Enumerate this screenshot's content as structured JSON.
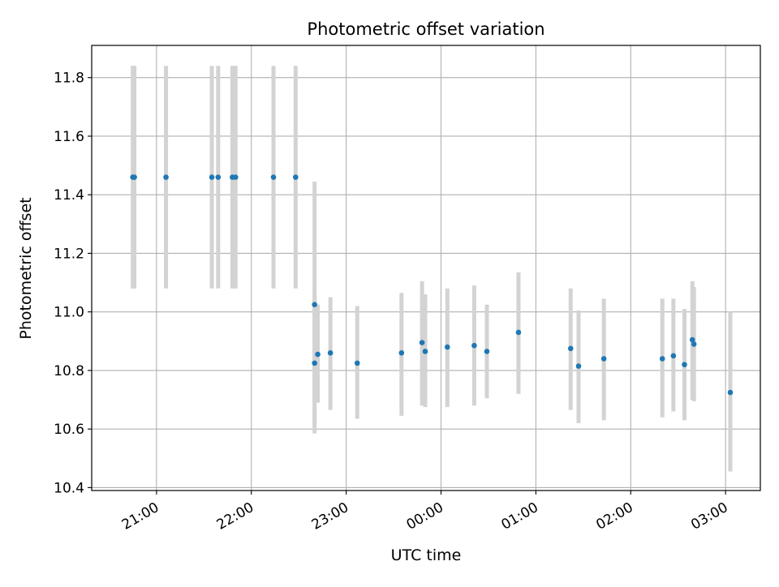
{
  "chart_data": {
    "type": "scatter",
    "title": "Photometric offset variation",
    "xlabel": "UTC time",
    "ylabel": "Photometric offset",
    "x_unit": "UTC clock time (hours after 00:00 of second day shown negative before midnight)",
    "xlim": [
      "20:19",
      "03:22"
    ],
    "ylim": [
      10.39,
      11.91
    ],
    "x_ticks": [
      "21:00",
      "22:00",
      "23:00",
      "00:00",
      "01:00",
      "02:00",
      "03:00"
    ],
    "y_ticks": [
      "10.4",
      "10.6",
      "10.8",
      "11.0",
      "11.2",
      "11.4",
      "11.6",
      "11.8"
    ],
    "grid": true,
    "marker_color": "#1f77b4",
    "errorbar_color": "#d3d3d3",
    "points": [
      {
        "x": "20:45",
        "y": 11.46,
        "err_low": 11.08,
        "err_high": 11.84
      },
      {
        "x": "20:46",
        "y": 11.46,
        "err_low": 11.08,
        "err_high": 11.84
      },
      {
        "x": "21:06",
        "y": 11.46,
        "err_low": 11.08,
        "err_high": 11.84
      },
      {
        "x": "21:35",
        "y": 11.46,
        "err_low": 11.08,
        "err_high": 11.84
      },
      {
        "x": "21:39",
        "y": 11.46,
        "err_low": 11.08,
        "err_high": 11.84
      },
      {
        "x": "21:48",
        "y": 11.46,
        "err_low": 11.08,
        "err_high": 11.84
      },
      {
        "x": "21:50",
        "y": 11.46,
        "err_low": 11.08,
        "err_high": 11.84
      },
      {
        "x": "22:14",
        "y": 11.46,
        "err_low": 11.08,
        "err_high": 11.84
      },
      {
        "x": "22:28",
        "y": 11.46,
        "err_low": 11.08,
        "err_high": 11.84
      },
      {
        "x": "22:40",
        "y": 10.825,
        "err_low": 10.585,
        "err_high": 11.445
      },
      {
        "x": "22:40",
        "y": 11.025,
        "err_low": 10.615,
        "err_high": 11.06
      },
      {
        "x": "22:42",
        "y": 10.855,
        "err_low": 10.69,
        "err_high": 11.025
      },
      {
        "x": "22:50",
        "y": 10.86,
        "err_low": 10.665,
        "err_high": 11.05
      },
      {
        "x": "23:07",
        "y": 10.825,
        "err_low": 10.635,
        "err_high": 11.02
      },
      {
        "x": "23:35",
        "y": 10.86,
        "err_low": 10.645,
        "err_high": 11.065
      },
      {
        "x": "23:48",
        "y": 10.895,
        "err_low": 10.68,
        "err_high": 11.105
      },
      {
        "x": "23:50",
        "y": 10.865,
        "err_low": 10.675,
        "err_high": 11.06
      },
      {
        "x": "00:04",
        "y": 10.88,
        "err_low": 10.675,
        "err_high": 11.08
      },
      {
        "x": "00:21",
        "y": 10.885,
        "err_low": 10.68,
        "err_high": 11.09
      },
      {
        "x": "00:29",
        "y": 10.865,
        "err_low": 10.705,
        "err_high": 11.025
      },
      {
        "x": "00:49",
        "y": 10.93,
        "err_low": 10.72,
        "err_high": 11.135
      },
      {
        "x": "01:22",
        "y": 10.875,
        "err_low": 10.665,
        "err_high": 11.08
      },
      {
        "x": "01:27",
        "y": 10.815,
        "err_low": 10.62,
        "err_high": 11.005
      },
      {
        "x": "01:43",
        "y": 10.84,
        "err_low": 10.63,
        "err_high": 11.045
      },
      {
        "x": "02:20",
        "y": 10.84,
        "err_low": 10.64,
        "err_high": 11.045
      },
      {
        "x": "02:27",
        "y": 10.85,
        "err_low": 10.66,
        "err_high": 11.045
      },
      {
        "x": "02:34",
        "y": 10.82,
        "err_low": 10.63,
        "err_high": 11.01
      },
      {
        "x": "02:39",
        "y": 10.905,
        "err_low": 10.7,
        "err_high": 11.105
      },
      {
        "x": "02:40",
        "y": 10.89,
        "err_low": 10.695,
        "err_high": 11.085
      },
      {
        "x": "03:03",
        "y": 10.725,
        "err_low": 10.455,
        "err_high": 11.0
      }
    ]
  }
}
